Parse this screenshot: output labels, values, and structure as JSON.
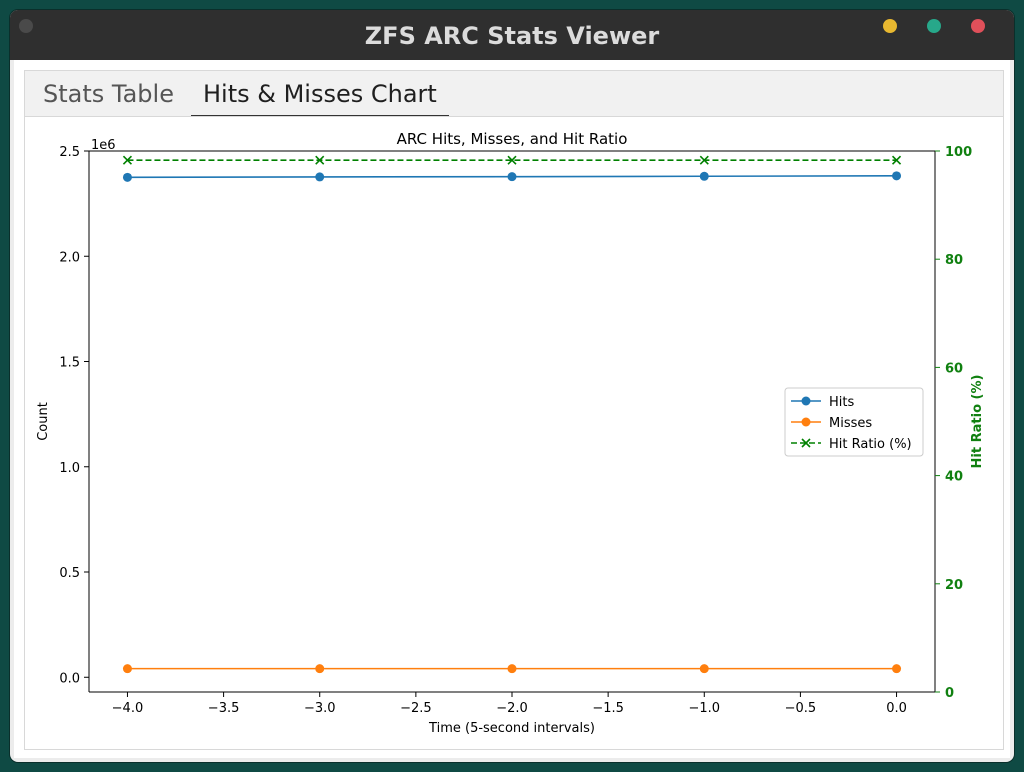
{
  "window": {
    "title": "ZFS ARC Stats Viewer"
  },
  "tabs": [
    {
      "label": "Stats Table",
      "active": false
    },
    {
      "label": "Hits & Misses Chart",
      "active": true
    }
  ],
  "colors": {
    "hits": "#1f77b4",
    "misses": "#ff7f0e",
    "ratio": "#008000"
  },
  "chart_data": {
    "type": "line",
    "title": "ARC Hits, Misses, and Hit Ratio",
    "xlabel": "Time (5-second intervals)",
    "ylabel": "Count",
    "y2label": "Hit Ratio (%)",
    "y_offset_label": "1e6",
    "x": [
      -4,
      -3,
      -2,
      -1,
      0
    ],
    "xlim": [
      -4.2,
      0.2
    ],
    "ylim": [
      -0.07,
      2.5
    ],
    "y2lim": [
      0,
      100
    ],
    "xticks": [
      -4.0,
      -3.5,
      -3.0,
      -2.5,
      -2.0,
      -1.5,
      -1.0,
      -0.5,
      0.0
    ],
    "xtick_labels": [
      "−4.0",
      "−3.5",
      "−3.0",
      "−2.5",
      "−2.0",
      "−1.5",
      "−1.0",
      "−0.5",
      "0.0"
    ],
    "yticks": [
      0.0,
      0.5,
      1.0,
      1.5,
      2.0,
      2.5
    ],
    "ytick_labels": [
      "0.0",
      "0.5",
      "1.0",
      "1.5",
      "2.0",
      "2.5"
    ],
    "y2ticks": [
      0,
      20,
      40,
      60,
      80,
      100
    ],
    "y2tick_labels": [
      "0",
      "20",
      "40",
      "60",
      "80",
      "100"
    ],
    "legend_position": "center-right",
    "grid": false,
    "series": [
      {
        "name": "Hits",
        "axis": "left",
        "marker": "circle",
        "values": [
          2.375,
          2.377,
          2.378,
          2.38,
          2.382
        ]
      },
      {
        "name": "Misses",
        "axis": "left",
        "marker": "circle",
        "values": [
          0.041,
          0.041,
          0.041,
          0.041,
          0.041
        ]
      },
      {
        "name": "Hit Ratio (%)",
        "axis": "right",
        "marker": "x",
        "dashed": true,
        "values": [
          98.3,
          98.3,
          98.3,
          98.3,
          98.3
        ]
      }
    ]
  }
}
